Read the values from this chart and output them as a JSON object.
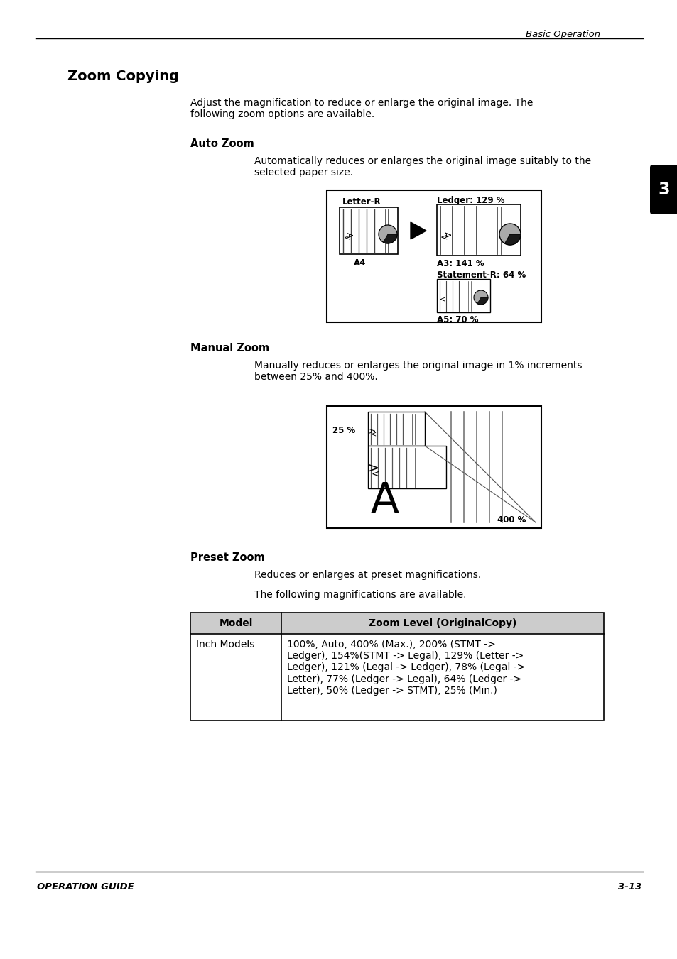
{
  "bg_color": "#ffffff",
  "header_text": "Basic Operation",
  "footer_left": "OPERATION GUIDE",
  "footer_right": "3-13",
  "tab_number": "3",
  "title": "Zoom Copying",
  "intro_text": "Adjust the magnification to reduce or enlarge the original image. The\nfollowing zoom options are available.",
  "section1_head": "Auto Zoom",
  "section1_text": "Automatically reduces or enlarges the original image suitably to the\nselected paper size.",
  "section2_head": "Manual Zoom",
  "section2_text": "Manually reduces or enlarges the original image in 1% increments\nbetween 25% and 400%.",
  "section3_head": "Preset Zoom",
  "section3_text1": "Reduces or enlarges at preset magnifications.",
  "section3_text2": "The following magnifications are available.",
  "table_header_col1": "Model",
  "table_header_col2": "Zoom Level (OriginalCopy)",
  "table_row1_col1": "Inch Models",
  "table_row1_col2": "100%, Auto, 400% (Max.), 200% (STMT ->\nLedger), 154%(STMT -> Legal), 129% (Letter ->\nLedger), 121% (Legal -> Ledger), 78% (Legal ->\nLetter), 77% (Ledger -> Legal), 64% (Ledger ->\nLetter), 50% (Ledger -> STMT), 25% (Min.)"
}
